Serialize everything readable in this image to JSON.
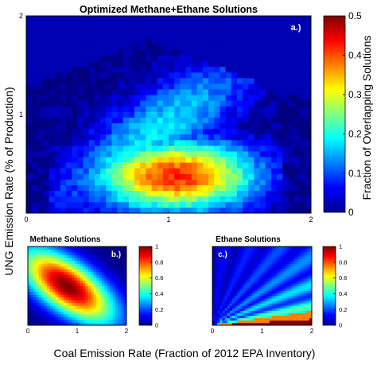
{
  "figure": {
    "ylabel": "UNG Emission Rate (% of Production)",
    "xlabel": "Coal Emission Rate (Fraction of 2012 EPA Inventory)"
  },
  "chart_data": [
    {
      "type": "heatmap",
      "panel_label": "a.)",
      "title": "Optimized Methane+Ethane Solutions",
      "xlim": [
        0,
        2
      ],
      "ylim": [
        0,
        2
      ],
      "xticks": [
        "0",
        "1",
        "2"
      ],
      "yticks": [
        "1",
        "2"
      ],
      "colormap": "jet",
      "colorbar": {
        "label": "Fraction of Overlapping Solutions",
        "range": [
          0,
          0.5
        ],
        "ticks": [
          "0",
          "0.1",
          "0.2",
          "0.3",
          "0.4",
          "0.5"
        ]
      },
      "hotspot": {
        "x": 1.05,
        "y": 0.38,
        "value": 0.42
      },
      "grid": false
    },
    {
      "type": "heatmap",
      "panel_label": "b.)",
      "title": "Methane Solutions",
      "xlim": [
        0,
        2
      ],
      "ylim": [
        0,
        2
      ],
      "xticks": [
        "0",
        "1",
        "2"
      ],
      "colormap": "jet",
      "colorbar": {
        "range": [
          0,
          1
        ],
        "ticks": [
          "0",
          "0.2",
          "0.4",
          "0.6",
          "0.8",
          "1"
        ]
      },
      "hotspot": {
        "x": 0.8,
        "y": 1.0,
        "value": 1.0
      },
      "grid": false
    },
    {
      "type": "heatmap",
      "panel_label": "c.)",
      "title": "Ethane Solutions",
      "xlim": [
        0,
        2
      ],
      "ylim": [
        0,
        2
      ],
      "xticks": [
        "0",
        "1",
        "2"
      ],
      "colormap": "jet",
      "colorbar": {
        "range": [
          0,
          1
        ],
        "ticks": [
          "0",
          "0.2",
          "0.4",
          "0.6",
          "0.8",
          "1"
        ]
      },
      "grid": false
    }
  ]
}
